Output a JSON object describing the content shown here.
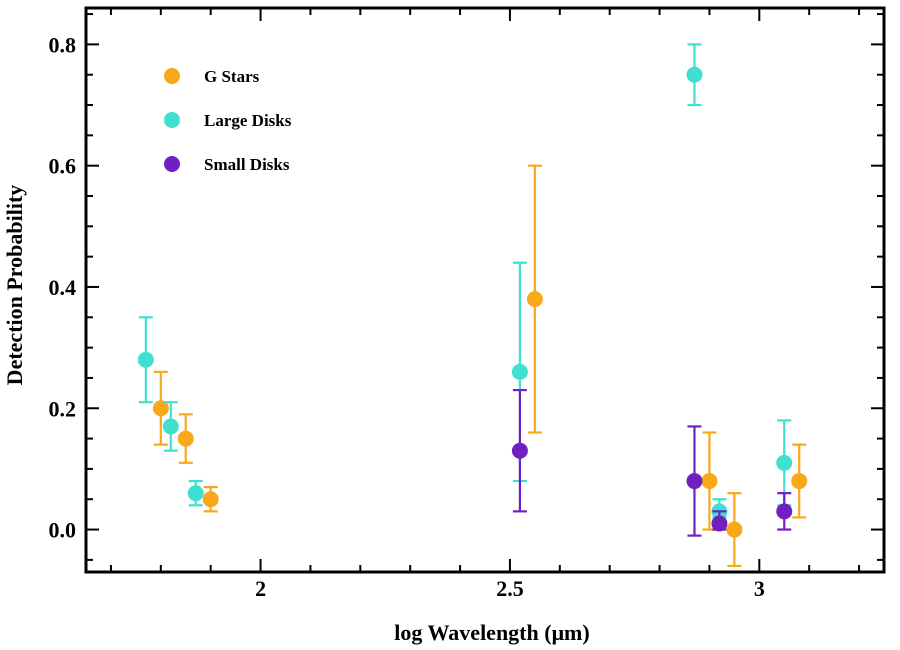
{
  "chart_data": {
    "type": "scatter",
    "title": "",
    "xlabel": "log Wavelength (μm)",
    "ylabel": "Detection Probability",
    "xlim": [
      1.65,
      3.25
    ],
    "ylim": [
      -0.07,
      0.86
    ],
    "xticks": [
      {
        "value": 2,
        "label": "2"
      },
      {
        "value": 2.5,
        "label": "2.5"
      },
      {
        "value": 3,
        "label": "3"
      }
    ],
    "yticks": [
      {
        "value": 0.0,
        "label": "0.0"
      },
      {
        "value": 0.2,
        "label": "0.2"
      },
      {
        "value": 0.4,
        "label": "0.4"
      },
      {
        "value": 0.6,
        "label": "0.6"
      },
      {
        "value": 0.8,
        "label": "0.8"
      }
    ],
    "legend_position": "top-left",
    "series": [
      {
        "name": "G Stars",
        "color": "#F9A81A",
        "points": [
          {
            "x": 1.8,
            "y": 0.2,
            "lo": 0.14,
            "hi": 0.26
          },
          {
            "x": 1.85,
            "y": 0.15,
            "lo": 0.11,
            "hi": 0.19
          },
          {
            "x": 1.9,
            "y": 0.05,
            "lo": 0.03,
            "hi": 0.07
          },
          {
            "x": 2.55,
            "y": 0.38,
            "lo": 0.16,
            "hi": 0.6
          },
          {
            "x": 2.9,
            "y": 0.08,
            "lo": 0.0,
            "hi": 0.16
          },
          {
            "x": 2.95,
            "y": 0.0,
            "lo": -0.06,
            "hi": 0.06
          },
          {
            "x": 3.08,
            "y": 0.08,
            "lo": 0.02,
            "hi": 0.14
          }
        ]
      },
      {
        "name": "Large Disks",
        "color": "#40E0D0",
        "points": [
          {
            "x": 1.77,
            "y": 0.28,
            "lo": 0.21,
            "hi": 0.35
          },
          {
            "x": 1.82,
            "y": 0.17,
            "lo": 0.13,
            "hi": 0.21
          },
          {
            "x": 1.87,
            "y": 0.06,
            "lo": 0.04,
            "hi": 0.08
          },
          {
            "x": 2.52,
            "y": 0.26,
            "lo": 0.08,
            "hi": 0.44
          },
          {
            "x": 2.87,
            "y": 0.75,
            "lo": 0.7,
            "hi": 0.8
          },
          {
            "x": 2.92,
            "y": 0.03,
            "lo": 0.02,
            "hi": 0.05
          },
          {
            "x": 3.05,
            "y": 0.11,
            "lo": 0.04,
            "hi": 0.18
          }
        ]
      },
      {
        "name": "Small Disks",
        "color": "#7020C0",
        "points": [
          {
            "x": 2.52,
            "y": 0.13,
            "lo": 0.03,
            "hi": 0.23
          },
          {
            "x": 2.87,
            "y": 0.08,
            "lo": -0.01,
            "hi": 0.17
          },
          {
            "x": 2.92,
            "y": 0.01,
            "lo": 0.0,
            "hi": 0.03
          },
          {
            "x": 3.05,
            "y": 0.03,
            "lo": 0.0,
            "hi": 0.06
          }
        ]
      }
    ]
  }
}
